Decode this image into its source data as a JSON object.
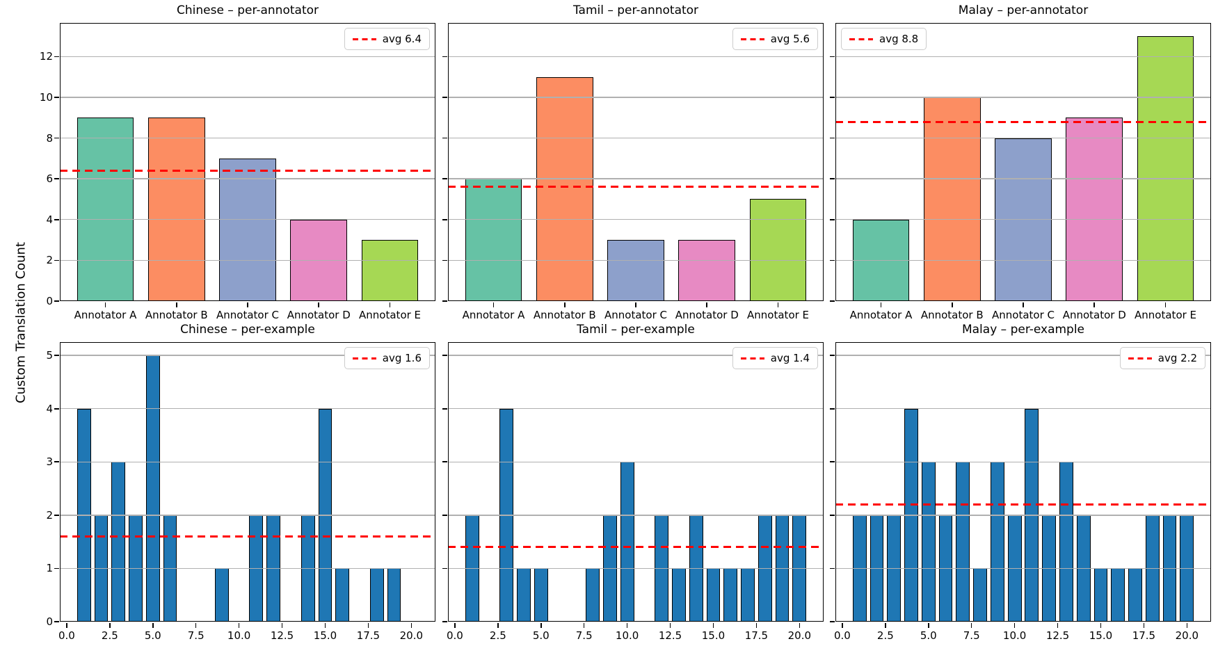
{
  "figure": {
    "ylabel": "Custom Translation Count",
    "background": "#ffffff"
  },
  "colors": {
    "annotator_palette": [
      "#66c2a5",
      "#fc8d62",
      "#8da0cb",
      "#e78ac3",
      "#a6d854"
    ],
    "histogram_bar": "#1f77b4",
    "bar_edge": "#000000",
    "avg_line": "#ff0000",
    "grid": "#b0b0b0",
    "legend_border": "#cccccc"
  },
  "chart_data": [
    {
      "id": "chinese-per-annotator",
      "type": "bar",
      "title": "Chinese – per-annotator",
      "categories": [
        "Annotator A",
        "Annotator B",
        "Annotator C",
        "Annotator D",
        "Annotator E"
      ],
      "values": [
        9,
        9,
        7,
        4,
        3
      ],
      "bar_colors": [
        "#66c2a5",
        "#fc8d62",
        "#8da0cb",
        "#e78ac3",
        "#a6d854"
      ],
      "avg": 6.4,
      "legend_label": "avg 6.4",
      "legend_position": "top-right",
      "yticks": [
        0,
        2,
        4,
        6,
        8,
        10,
        12
      ],
      "ylim": [
        0,
        13.65
      ],
      "xlim": [
        -0.64,
        4.64
      ],
      "bar_width": 0.8,
      "grid": true,
      "show_ytick_labels": true
    },
    {
      "id": "tamil-per-annotator",
      "type": "bar",
      "title": "Tamil – per-annotator",
      "categories": [
        "Annotator A",
        "Annotator B",
        "Annotator C",
        "Annotator D",
        "Annotator E"
      ],
      "values": [
        6,
        11,
        3,
        3,
        5
      ],
      "bar_colors": [
        "#66c2a5",
        "#fc8d62",
        "#8da0cb",
        "#e78ac3",
        "#a6d854"
      ],
      "avg": 5.6,
      "legend_label": "avg 5.6",
      "legend_position": "top-right",
      "yticks": [
        0,
        2,
        4,
        6,
        8,
        10,
        12
      ],
      "ylim": [
        0,
        13.65
      ],
      "xlim": [
        -0.64,
        4.64
      ],
      "bar_width": 0.8,
      "grid": true,
      "show_ytick_labels": false
    },
    {
      "id": "malay-per-annotator",
      "type": "bar",
      "title": "Malay – per-annotator",
      "categories": [
        "Annotator A",
        "Annotator B",
        "Annotator C",
        "Annotator D",
        "Annotator E"
      ],
      "values": [
        4,
        10,
        8,
        9,
        13
      ],
      "bar_colors": [
        "#66c2a5",
        "#fc8d62",
        "#8da0cb",
        "#e78ac3",
        "#a6d854"
      ],
      "avg": 8.8,
      "legend_label": "avg 8.8",
      "legend_position": "top-left",
      "yticks": [
        0,
        2,
        4,
        6,
        8,
        10,
        12
      ],
      "ylim": [
        0,
        13.65
      ],
      "xlim": [
        -0.64,
        4.64
      ],
      "bar_width": 0.8,
      "grid": true,
      "show_ytick_labels": false
    },
    {
      "id": "chinese-per-example",
      "type": "bar",
      "title": "Chinese – per-example",
      "x": [
        1,
        2,
        3,
        4,
        5,
        6,
        7,
        8,
        9,
        10,
        11,
        12,
        13,
        14,
        15,
        16,
        17,
        18,
        19,
        20
      ],
      "values": [
        4,
        2,
        3,
        2,
        5,
        2,
        0,
        0,
        1,
        0,
        2,
        2,
        0,
        2,
        4,
        1,
        0,
        1,
        1,
        0
      ],
      "bar_color": "#1f77b4",
      "avg": 1.6,
      "legend_label": "avg 1.6",
      "legend_position": "top-right",
      "yticks": [
        0,
        1,
        2,
        3,
        4,
        5
      ],
      "ylim": [
        0,
        5.25
      ],
      "xticks": [
        0,
        2.5,
        5,
        7.5,
        10,
        12.5,
        15,
        17.5,
        20
      ],
      "xtick_labels": [
        "0.0",
        "2.5",
        "5.0",
        "7.5",
        "10.0",
        "12.5",
        "15.0",
        "17.5",
        "20.0"
      ],
      "xlim": [
        -0.4,
        21.4
      ],
      "bar_width": 0.8,
      "grid": true,
      "show_ytick_labels": true
    },
    {
      "id": "tamil-per-example",
      "type": "bar",
      "title": "Tamil – per-example",
      "x": [
        1,
        2,
        3,
        4,
        5,
        6,
        7,
        8,
        9,
        10,
        11,
        12,
        13,
        14,
        15,
        16,
        17,
        18,
        19,
        20
      ],
      "values": [
        2,
        0,
        4,
        1,
        1,
        0,
        0,
        1,
        2,
        3,
        0,
        2,
        1,
        2,
        1,
        1,
        1,
        2,
        2,
        2
      ],
      "bar_color": "#1f77b4",
      "avg": 1.4,
      "legend_label": "avg 1.4",
      "legend_position": "top-right",
      "yticks": [
        0,
        1,
        2,
        3,
        4,
        5
      ],
      "ylim": [
        0,
        5.25
      ],
      "xticks": [
        0,
        2.5,
        5,
        7.5,
        10,
        12.5,
        15,
        17.5,
        20
      ],
      "xtick_labels": [
        "0.0",
        "2.5",
        "5.0",
        "7.5",
        "10.0",
        "12.5",
        "15.0",
        "17.5",
        "20.0"
      ],
      "xlim": [
        -0.4,
        21.4
      ],
      "bar_width": 0.8,
      "grid": true,
      "show_ytick_labels": false
    },
    {
      "id": "malay-per-example",
      "type": "bar",
      "title": "Malay – per-example",
      "x": [
        1,
        2,
        3,
        4,
        5,
        6,
        7,
        8,
        9,
        10,
        11,
        12,
        13,
        14,
        15,
        16,
        17,
        18,
        19,
        20
      ],
      "values": [
        2,
        2,
        2,
        4,
        3,
        2,
        3,
        1,
        3,
        2,
        4,
        2,
        3,
        2,
        1,
        1,
        1,
        2,
        2,
        2
      ],
      "bar_color": "#1f77b4",
      "avg": 2.2,
      "legend_label": "avg 2.2",
      "legend_position": "top-right",
      "yticks": [
        0,
        1,
        2,
        3,
        4,
        5
      ],
      "ylim": [
        0,
        5.25
      ],
      "xticks": [
        0,
        2.5,
        5,
        7.5,
        10,
        12.5,
        15,
        17.5,
        20
      ],
      "xtick_labels": [
        "0.0",
        "2.5",
        "5.0",
        "7.5",
        "10.0",
        "12.5",
        "15.0",
        "17.5",
        "20.0"
      ],
      "xlim": [
        -0.4,
        21.4
      ],
      "bar_width": 0.8,
      "grid": true,
      "show_ytick_labels": false
    }
  ]
}
